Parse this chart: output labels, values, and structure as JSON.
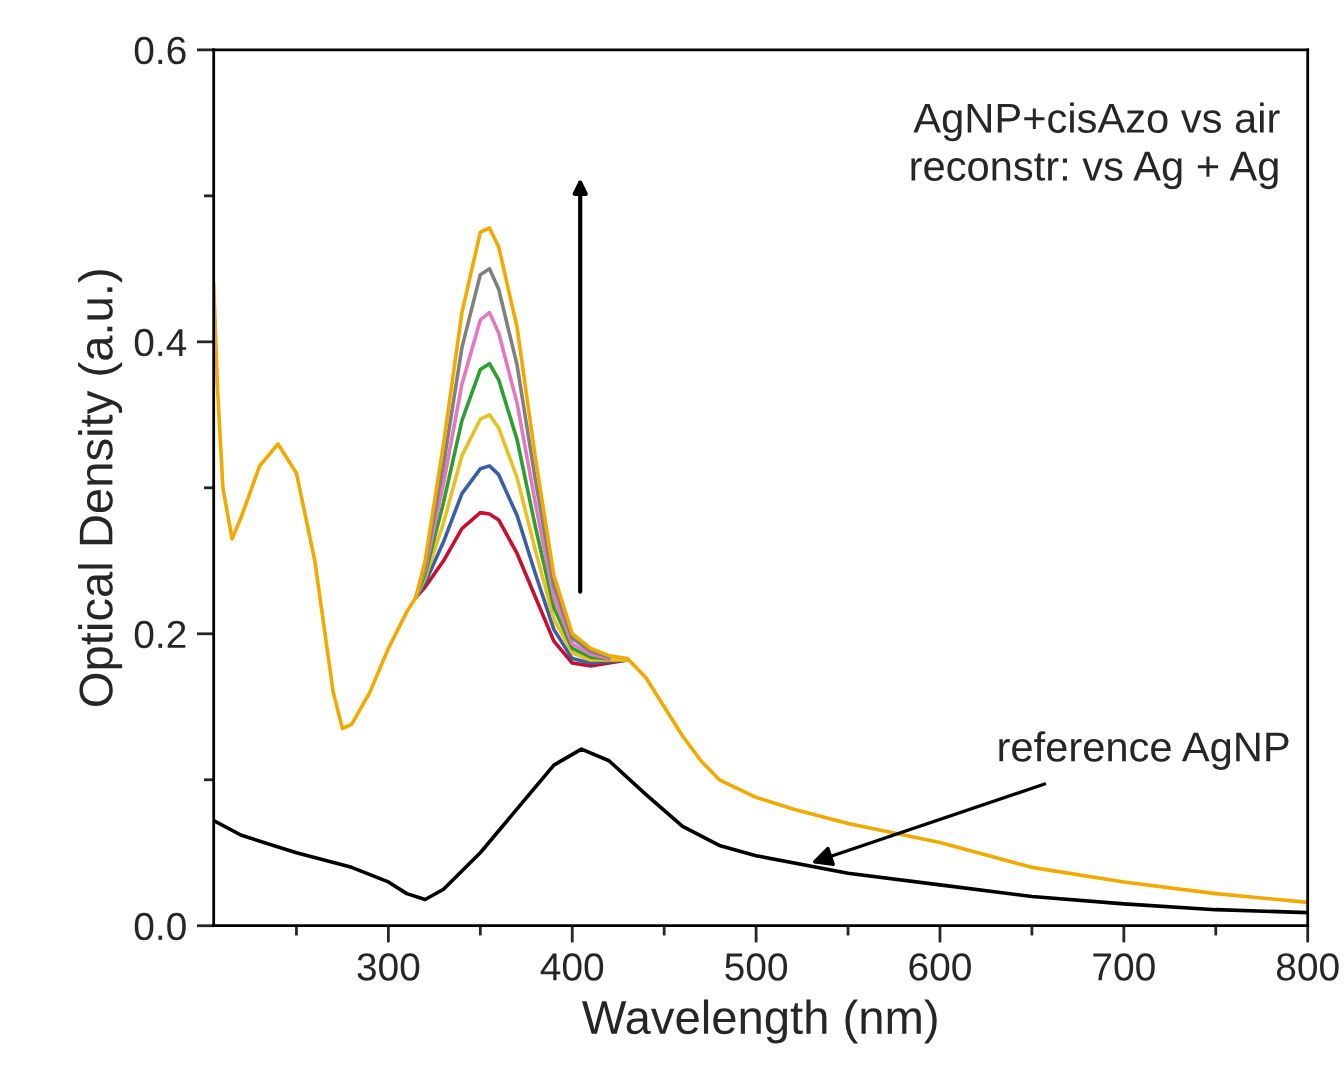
{
  "chart_data": {
    "type": "line",
    "xlabel": "Wavelength (nm)",
    "ylabel": "Optical Density (a.u.)",
    "x": [
      205,
      207,
      210,
      215,
      220,
      230,
      240,
      250,
      260,
      270,
      275,
      280,
      290,
      300,
      310,
      315,
      320,
      330,
      340,
      350,
      355,
      360,
      370,
      380,
      390,
      400,
      410,
      420,
      430,
      440,
      450,
      460,
      470,
      480,
      500,
      520,
      550,
      600,
      650,
      700,
      750,
      800
    ],
    "xlim": [
      205,
      800
    ],
    "ylim": [
      0,
      0.6
    ],
    "xticks": [
      {
        "value": 250,
        "label": null
      },
      300,
      {
        "value": 350,
        "label": null
      },
      400,
      {
        "value": 450,
        "label": null
      },
      500,
      {
        "value": 550,
        "label": null
      },
      600,
      {
        "value": 650,
        "label": null
      },
      700,
      {
        "value": 750,
        "label": null
      },
      800
    ],
    "yticks": [
      {
        "value": 0,
        "label": "0.0"
      },
      {
        "value": 0.1,
        "label": null
      },
      0.2,
      {
        "value": 0.3,
        "label": null
      },
      0.4,
      {
        "value": 0.5,
        "label": null
      },
      0.6
    ],
    "grid": false,
    "legend": false,
    "marker": "none",
    "line_style": "solid",
    "series": [
      {
        "color": "#c8102e",
        "values": [
          null,
          null,
          null,
          null,
          null,
          null,
          null,
          null,
          null,
          null,
          null,
          null,
          null,
          null,
          null,
          0.225,
          0.232,
          0.25,
          0.272,
          0.283,
          0.282,
          0.278,
          0.255,
          0.225,
          0.195,
          0.18,
          0.178,
          0.18,
          0.182,
          null,
          null,
          null,
          null,
          null,
          null,
          null,
          null,
          null,
          null,
          null,
          null,
          null
        ]
      },
      {
        "color": "#3a5fa8",
        "values": [
          null,
          null,
          null,
          null,
          null,
          null,
          null,
          null,
          null,
          null,
          null,
          null,
          null,
          null,
          null,
          0.225,
          0.235,
          0.263,
          0.296,
          0.313,
          0.315,
          0.309,
          0.281,
          0.241,
          0.203,
          0.183,
          0.18,
          0.181,
          0.182,
          null,
          null,
          null,
          null,
          null,
          null,
          null,
          null,
          null,
          null,
          null,
          null,
          null
        ]
      },
      {
        "color": "#e8c020",
        "values": [
          null,
          null,
          null,
          null,
          null,
          null,
          null,
          null,
          null,
          null,
          null,
          null,
          null,
          null,
          null,
          0.225,
          0.238,
          0.276,
          0.322,
          0.347,
          0.35,
          0.341,
          0.307,
          0.257,
          0.21,
          0.187,
          0.182,
          0.182,
          0.182,
          null,
          null,
          null,
          null,
          null,
          null,
          null,
          null,
          null,
          null,
          null,
          null,
          null
        ]
      },
      {
        "color": "#2ca02c",
        "values": [
          null,
          null,
          null,
          null,
          null,
          null,
          null,
          null,
          null,
          null,
          null,
          null,
          null,
          null,
          null,
          0.225,
          0.241,
          0.29,
          0.346,
          0.381,
          0.385,
          0.374,
          0.333,
          0.273,
          0.218,
          0.19,
          0.184,
          0.183,
          null,
          null,
          null,
          null,
          null,
          null,
          null,
          null,
          null,
          null,
          null,
          null,
          null,
          null
        ]
      },
      {
        "color": "#e377c2",
        "values": [
          null,
          null,
          null,
          null,
          null,
          null,
          null,
          null,
          null,
          null,
          null,
          null,
          null,
          null,
          null,
          0.225,
          0.244,
          0.303,
          0.371,
          0.415,
          0.42,
          0.406,
          0.358,
          0.289,
          0.225,
          0.193,
          0.186,
          0.183,
          null,
          null,
          null,
          null,
          null,
          null,
          null,
          null,
          null,
          null,
          null,
          null,
          null,
          null
        ]
      },
      {
        "color": "#808080",
        "values": [
          null,
          null,
          null,
          null,
          null,
          null,
          null,
          null,
          null,
          null,
          null,
          null,
          null,
          null,
          null,
          0.225,
          0.247,
          0.316,
          0.396,
          0.446,
          0.45,
          0.436,
          0.384,
          0.305,
          0.233,
          0.197,
          0.188,
          0.184,
          null,
          null,
          null,
          null,
          null,
          null,
          null,
          null,
          null,
          null,
          null,
          null,
          null,
          null
        ]
      },
      {
        "color": "#f2a900",
        "values": [
          0.44,
          0.37,
          0.3,
          0.265,
          0.28,
          0.315,
          0.33,
          0.31,
          0.25,
          0.16,
          0.135,
          0.138,
          0.16,
          0.19,
          0.215,
          0.225,
          0.25,
          0.33,
          0.42,
          0.475,
          0.478,
          0.465,
          0.41,
          0.32,
          0.24,
          0.2,
          0.19,
          0.185,
          0.183,
          0.17,
          0.15,
          0.13,
          0.113,
          0.1,
          0.088,
          0.08,
          0.07,
          0.057,
          0.04,
          0.03,
          0.022,
          0.016
        ]
      },
      {
        "color": "#000000",
        "x": [
          205,
          220,
          250,
          280,
          300,
          310,
          320,
          330,
          350,
          370,
          390,
          405,
          420,
          440,
          460,
          480,
          500,
          550,
          600,
          650,
          700,
          750,
          800
        ],
        "values": [
          0.072,
          0.062,
          0.05,
          0.04,
          0.03,
          0.022,
          0.018,
          0.025,
          0.05,
          0.08,
          0.11,
          0.121,
          0.113,
          0.09,
          0.068,
          0.055,
          0.048,
          0.036,
          0.028,
          0.02,
          0.015,
          0.011,
          0.009
        ]
      }
    ],
    "annotations": [
      "AgNP+cisAzo vs air\nreconstr: vs Ag + Ag",
      {
        "text": "reference AgNP",
        "x": 530,
        "y": 0.043
      }
    ]
  }
}
